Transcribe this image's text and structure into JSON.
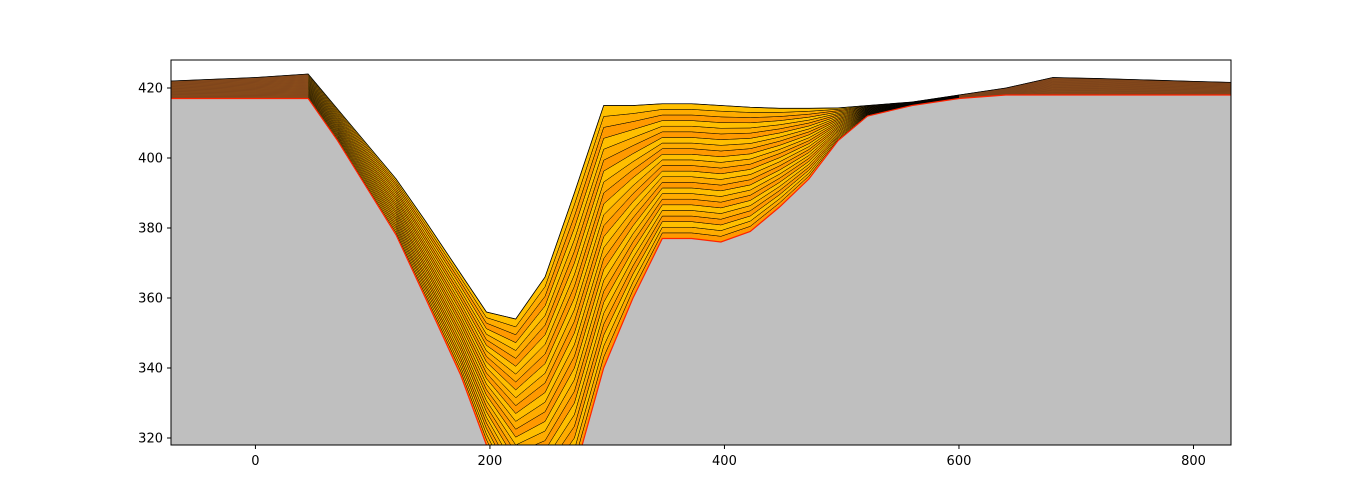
{
  "chart_data": {
    "type": "area",
    "title": "",
    "xlabel": "",
    "ylabel": "",
    "xlim": [
      -72,
      832
    ],
    "ylim": [
      318,
      428
    ],
    "x_ticks": [
      0,
      200,
      400,
      600,
      800
    ],
    "y_ticks": [
      320,
      340,
      360,
      380,
      400,
      420
    ],
    "x_tick_labels": [
      "0",
      "200",
      "400",
      "600",
      "800"
    ],
    "y_tick_labels": [
      "320",
      "340",
      "360",
      "380",
      "400",
      "420"
    ],
    "grid": false,
    "legend": "none",
    "colors": {
      "basement": "#bfbfbf",
      "sand_top": "#ffd200",
      "sand_bottom": "#ff6a00",
      "channel_edge": "#ff2200",
      "floodplain": "#8a4a1e",
      "layer_line": "#000000"
    },
    "layer_count": 24,
    "x": [
      -72,
      0,
      45,
      70,
      120,
      145,
      175,
      197,
      222,
      247,
      272,
      297,
      322,
      347,
      372,
      397,
      422,
      447,
      472,
      497,
      522,
      560,
      600,
      640,
      680,
      720,
      760,
      800,
      832
    ],
    "basement": [
      417,
      417,
      417,
      405,
      378,
      360,
      338,
      318,
      300,
      300,
      310,
      340,
      360,
      377,
      377,
      376,
      379,
      386,
      394,
      405,
      412,
      415,
      417,
      418,
      418,
      418,
      418,
      418,
      418
    ],
    "surface": [
      422,
      423,
      424,
      414,
      394,
      382,
      367,
      356,
      354,
      366,
      390,
      415,
      415,
      415.5,
      415.5,
      415,
      414.5,
      414.2,
      414.2,
      414.3,
      415,
      416,
      418,
      420,
      423,
      422.7,
      422.3,
      421.9,
      421.6
    ],
    "floodplain_range": [
      [
        -72,
        60
      ],
      [
        570,
        832
      ]
    ]
  }
}
